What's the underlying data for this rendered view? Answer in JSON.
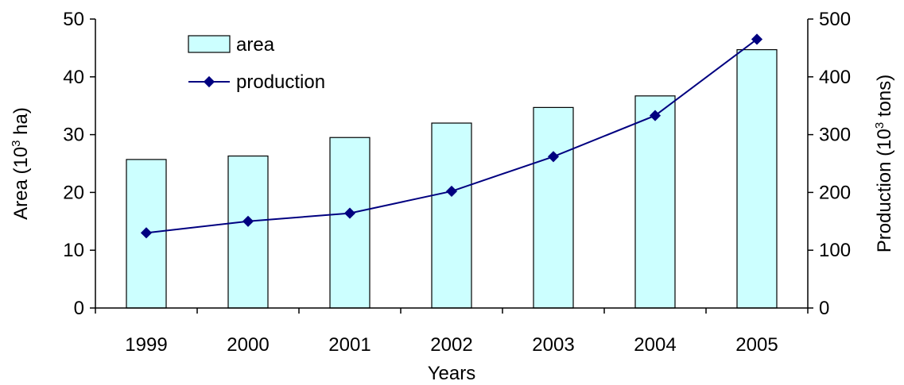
{
  "chart_data": {
    "type": "bar",
    "categories": [
      "1999",
      "2000",
      "2001",
      "2002",
      "2003",
      "2004",
      "2005"
    ],
    "series": [
      {
        "name": "area",
        "type": "bar",
        "axis": "left",
        "values": [
          25.7,
          26.3,
          29.5,
          32.0,
          34.7,
          36.7,
          44.7
        ],
        "color": "#ccffff"
      },
      {
        "name": "production",
        "type": "line",
        "axis": "right",
        "values": [
          130,
          150,
          164,
          202,
          262,
          333,
          465
        ],
        "color": "#000080"
      }
    ],
    "xlabel": "Years",
    "ylabel_left": {
      "base": "Area (10",
      "sup": "3",
      "rest": " ha)"
    },
    "ylabel_right": {
      "base": "Production (10",
      "sup": "3",
      "rest": " tons)"
    },
    "ylim_left": [
      0,
      50
    ],
    "yticks_left": [
      "0",
      "10",
      "20",
      "30",
      "40",
      "50"
    ],
    "ylim_right": [
      0,
      500
    ],
    "yticks_right": [
      "0",
      "100",
      "200",
      "300",
      "400",
      "500"
    ],
    "grid": false,
    "legend_position": "top-left"
  }
}
